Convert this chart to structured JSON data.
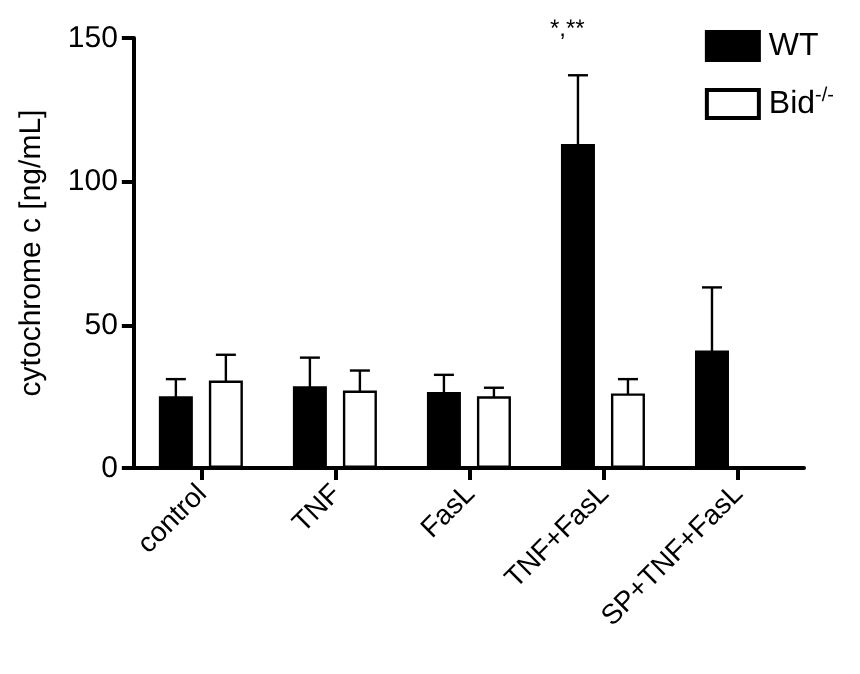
{
  "chart_data": {
    "type": "bar",
    "ylabel": "cytochrome c [ng/mL]",
    "categories": [
      "control",
      "TNF",
      "FasL",
      "TNF+FasL",
      "SP+TNF+FasL"
    ],
    "series": [
      {
        "name": "WT",
        "color": "#000000",
        "values": [
          25,
          28.5,
          26.5,
          113,
          41
        ],
        "errors": [
          6,
          10,
          6,
          24,
          22
        ]
      },
      {
        "name": "Bid$^{-/-}$",
        "color": "#ffffff",
        "values": [
          30.5,
          27,
          25,
          26,
          null
        ],
        "errors": [
          9,
          7,
          3,
          5,
          null
        ]
      }
    ],
    "ylim": [
      0,
      150
    ],
    "yticks": [
      0,
      50,
      100,
      150
    ],
    "grid": false,
    "legend": "top right",
    "annotations": [
      "*,**"
    ]
  }
}
